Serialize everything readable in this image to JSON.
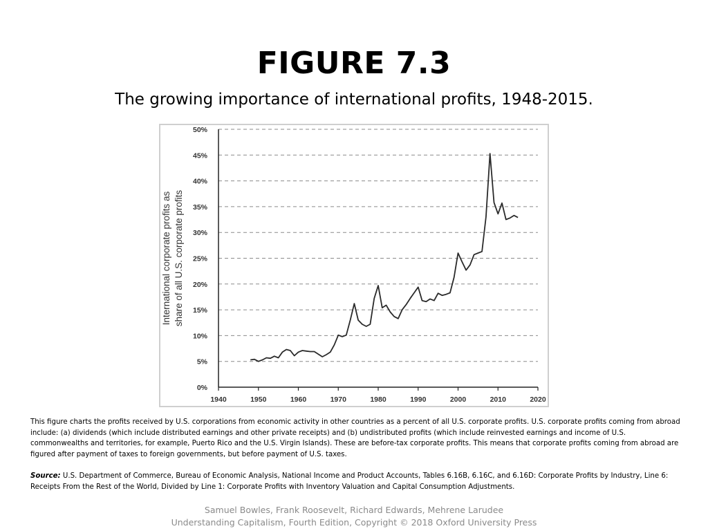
{
  "slide": {
    "title": "FIGURE 7.3",
    "subtitle": "The growing importance of international profits, 1948-2015.",
    "description": "This figure charts the profits received by U.S. corporations from economic activity in other countries as a percent of all U.S. corporate profits. U.S. corporate profits coming from abroad include: (a) dividends (which include distributed earnings and other private receipts) and (b) undistributed profits (which include reinvested earnings and income of U.S. commonwealths and territories, for example, Puerto Rico and the U.S. Virgin Islands). These are before-tax corporate profits. This means that corporate profits coming from abroad are figured after payment of taxes to foreign governments, but before payment of U.S. taxes.",
    "source_label": "Source:",
    "source_text": "U.S. Department of Commerce, Bureau of Economic Analysis, National Income and Product Accounts, Tables 6.16B, 6.16C, and 6.16D: Corporate Profits by Industry, Line 6: Receipts From the Rest of the World, Divided by Line 1: Corporate Profits with Inventory Valuation and Capital Consumption Adjustments.",
    "footer_authors": "Samuel Bowles, Frank Roosevelt, Richard Edwards, Mehrene Larudee",
    "footer_book": "Understanding Capitalism, Fourth Edition, Copyright © 2018 Oxford University Press"
  },
  "chart_data": {
    "type": "line",
    "title": "",
    "xlabel": "",
    "ylabel_lines": [
      "International corporate profits as",
      "share of all U.S. corporate profits"
    ],
    "xlim": [
      1940,
      2020
    ],
    "ylim": [
      0,
      50
    ],
    "xticks": [
      1940,
      1950,
      1960,
      1970,
      1980,
      1990,
      2000,
      2010,
      2020
    ],
    "yticks": [
      0,
      5,
      10,
      15,
      20,
      25,
      30,
      35,
      40,
      45,
      50
    ],
    "ytick_labels": [
      "0%",
      "5%",
      "10%",
      "15%",
      "20%",
      "25%",
      "30%",
      "35%",
      "40%",
      "45%",
      "50%"
    ],
    "grid": "horizontal dashed",
    "line_color": "#2a2a2a",
    "series": [
      {
        "x": [
          1948,
          1949,
          1950,
          1951,
          1952,
          1953,
          1954,
          1955,
          1956,
          1957,
          1958,
          1959,
          1960,
          1961,
          1962,
          1963,
          1964,
          1965,
          1966,
          1967,
          1968,
          1969,
          1970,
          1971,
          1972,
          1973,
          1974,
          1975,
          1976,
          1977,
          1978,
          1979,
          1980,
          1981,
          1982,
          1983,
          1984,
          1985,
          1986,
          1987,
          1988,
          1989,
          1990,
          1991,
          1992,
          1993,
          1994,
          1995,
          1996,
          1997,
          1998,
          1999,
          2000,
          2001,
          2002,
          2003,
          2004,
          2005,
          2006,
          2007,
          2008,
          2009,
          2010,
          2011,
          2012,
          2013,
          2014,
          2015
        ],
        "y": [
          5.3,
          5.4,
          5.0,
          5.3,
          5.7,
          5.6,
          6.0,
          5.7,
          6.8,
          7.3,
          7.1,
          6.1,
          6.8,
          7.1,
          7.0,
          6.9,
          6.9,
          6.4,
          5.9,
          6.3,
          6.8,
          8.2,
          10.1,
          9.8,
          10.1,
          13.0,
          16.2,
          13.0,
          12.2,
          11.8,
          12.2,
          17.2,
          19.7,
          15.4,
          15.9,
          14.6,
          13.7,
          13.3,
          15.0,
          16.0,
          17.2,
          18.3,
          19.4,
          16.8,
          16.6,
          17.1,
          16.8,
          18.2,
          17.8,
          18.0,
          18.3,
          21.3,
          26.0,
          24.3,
          22.7,
          23.7,
          25.7,
          26.0,
          26.3,
          33.0,
          45.3,
          35.8,
          33.6,
          35.7,
          32.5,
          32.8,
          33.3,
          32.9
        ]
      }
    ]
  }
}
